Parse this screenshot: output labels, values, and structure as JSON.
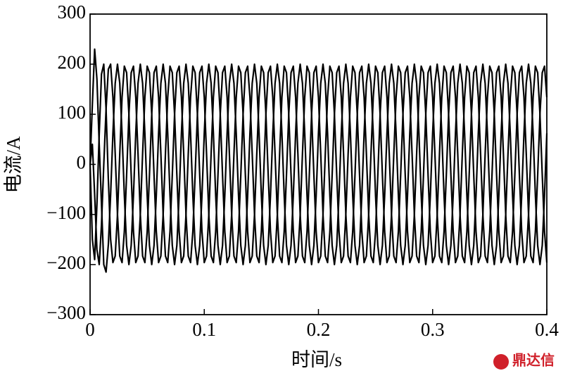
{
  "chart_data": {
    "type": "line",
    "xlabel": "时间/s",
    "ylabel": "电流/A",
    "watermark": "鼎达信",
    "xlim": [
      0,
      0.4
    ],
    "xticks": [
      0,
      0.1,
      0.2,
      0.3,
      0.4
    ],
    "ylim": [
      -300,
      300
    ],
    "yticks": [
      {
        "value": -300,
        "label": "−300"
      },
      {
        "value": -200,
        "label": "−200"
      },
      {
        "value": -100,
        "label": "−100"
      },
      0,
      100,
      200,
      300
    ],
    "x": [
      0,
      0.002,
      0.004,
      0.006,
      0.008,
      0.01,
      0.012,
      0.014,
      0.016,
      0.018,
      0.02,
      0.022,
      0.024,
      0.026,
      0.028,
      0.03,
      0.032,
      0.034,
      0.036,
      0.038,
      0.04,
      0.042,
      0.044,
      0.046,
      0.048,
      0.05,
      0.052,
      0.054,
      0.056,
      0.058,
      0.06,
      0.062,
      0.064,
      0.066,
      0.068,
      0.07,
      0.072,
      0.074,
      0.076,
      0.078,
      0.08,
      0.082,
      0.084,
      0.086,
      0.088,
      0.09,
      0.092,
      0.094,
      0.096,
      0.098,
      0.1,
      0.102,
      0.104,
      0.106,
      0.108,
      0.11,
      0.112,
      0.114,
      0.116,
      0.118,
      0.12,
      0.122,
      0.124,
      0.126,
      0.128,
      0.13,
      0.132,
      0.134,
      0.136,
      0.138,
      0.14,
      0.142,
      0.144,
      0.146,
      0.148,
      0.15,
      0.152,
      0.154,
      0.156,
      0.158,
      0.16,
      0.162,
      0.164,
      0.166,
      0.168,
      0.17,
      0.172,
      0.174,
      0.176,
      0.178,
      0.18,
      0.182,
      0.184,
      0.186,
      0.188,
      0.19,
      0.192,
      0.194,
      0.196,
      0.198,
      0.2,
      0.202,
      0.204,
      0.206,
      0.208,
      0.21,
      0.212,
      0.214,
      0.216,
      0.218,
      0.22,
      0.222,
      0.224,
      0.226,
      0.228,
      0.23,
      0.232,
      0.234,
      0.236,
      0.238,
      0.24,
      0.242,
      0.244,
      0.246,
      0.248,
      0.25,
      0.252,
      0.254,
      0.256,
      0.258,
      0.26,
      0.262,
      0.264,
      0.266,
      0.268,
      0.27,
      0.272,
      0.274,
      0.276,
      0.278,
      0.28,
      0.282,
      0.284,
      0.286,
      0.288,
      0.29,
      0.292,
      0.294,
      0.296,
      0.298,
      0.3,
      0.302,
      0.304,
      0.306,
      0.308,
      0.31,
      0.312,
      0.314,
      0.316,
      0.318,
      0.32,
      0.322,
      0.324,
      0.326,
      0.328,
      0.33,
      0.332,
      0.334,
      0.336,
      0.338,
      0.34,
      0.342,
      0.344,
      0.346,
      0.348,
      0.35,
      0.352,
      0.354,
      0.356,
      0.358,
      0.36,
      0.362,
      0.364,
      0.366,
      0.368,
      0.37,
      0.372,
      0.374,
      0.376,
      0.378,
      0.38,
      0.382,
      0.384,
      0.386,
      0.388,
      0.39,
      0.392,
      0.394,
      0.396,
      0.398,
      0.4
    ],
    "series": [
      {
        "color": "#000000",
        "values": [
          0,
          120,
          230,
          170,
          40,
          -80,
          -200,
          -215,
          -160,
          -60,
          62,
          162,
          200,
          162,
          62,
          -62,
          -162,
          -200,
          -162,
          -62,
          62,
          162,
          200,
          162,
          62,
          -62,
          -162,
          -200,
          -162,
          -62,
          62,
          162,
          200,
          162,
          62,
          -62,
          -162,
          -200,
          -162,
          -62,
          62,
          162,
          200,
          162,
          62,
          -62,
          -162,
          -200,
          -162,
          -62,
          62,
          162,
          200,
          162,
          62,
          -62,
          -162,
          -200,
          -162,
          -62,
          62,
          162,
          200,
          162,
          62,
          -62,
          -162,
          -200,
          -162,
          -62,
          62,
          162,
          200,
          162,
          62,
          -62,
          -162,
          -200,
          -162,
          -62,
          62,
          162,
          200,
          162,
          62,
          -62,
          -162,
          -200,
          -162,
          -62,
          62,
          162,
          200,
          162,
          62,
          -62,
          -162,
          -200,
          -162,
          -62,
          62,
          162,
          200,
          162,
          62,
          -62,
          -162,
          -200,
          -162,
          -62,
          62,
          162,
          200,
          162,
          62,
          -62,
          -162,
          -200,
          -162,
          -62,
          62,
          162,
          200,
          162,
          62,
          -62,
          -162,
          -200,
          -162,
          -62,
          62,
          162,
          200,
          162,
          62,
          -62,
          -162,
          -200,
          -162,
          -62,
          62,
          162,
          200,
          162,
          62,
          -62,
          -162,
          -200,
          -162,
          -62,
          62,
          162,
          200,
          162,
          62,
          -62,
          -162,
          -200,
          -162,
          -62,
          62,
          162,
          200,
          162,
          62,
          -62,
          -162,
          -200,
          -162,
          -62,
          62,
          162,
          200,
          162,
          62,
          -62,
          -162,
          -200,
          -162,
          -62,
          62,
          162,
          200,
          162,
          62,
          -62,
          -162,
          -200,
          -162,
          -62,
          62,
          162,
          200,
          162,
          62,
          -62,
          -162,
          -200,
          -162,
          -62,
          62
        ]
      },
      {
        "color": "#000000",
        "values": [
          0,
          -150,
          -190,
          -80,
          60,
          180,
          200,
          110,
          -30,
          -150,
          -196,
          -183,
          -100,
          21,
          134,
          196,
          183,
          100,
          -21,
          -134,
          -196,
          -183,
          -100,
          21,
          134,
          196,
          183,
          100,
          -21,
          -134,
          -196,
          -183,
          -100,
          21,
          134,
          196,
          183,
          100,
          -21,
          -134,
          -196,
          -183,
          -100,
          21,
          134,
          196,
          183,
          100,
          -21,
          -134,
          -196,
          -183,
          -100,
          21,
          134,
          196,
          183,
          100,
          -21,
          -134,
          -196,
          -183,
          -100,
          21,
          134,
          196,
          183,
          100,
          -21,
          -134,
          -196,
          -183,
          -100,
          21,
          134,
          196,
          183,
          100,
          -21,
          -134,
          -196,
          -183,
          -100,
          21,
          134,
          196,
          183,
          100,
          -21,
          -134,
          -196,
          -183,
          -100,
          21,
          134,
          196,
          183,
          100,
          -21,
          -134,
          -196,
          -183,
          -100,
          21,
          134,
          196,
          183,
          100,
          -21,
          -134,
          -196,
          -183,
          -100,
          21,
          134,
          196,
          183,
          100,
          -21,
          -134,
          -196,
          -183,
          -100,
          21,
          134,
          196,
          183,
          100,
          -21,
          -134,
          -196,
          -183,
          -100,
          21,
          134,
          196,
          183,
          100,
          -21,
          -134,
          -196,
          -183,
          -100,
          21,
          134,
          196,
          183,
          100,
          -21,
          -134,
          -196,
          -183,
          -100,
          21,
          134,
          196,
          183,
          100,
          -21,
          -134,
          -196,
          -183,
          -100,
          21,
          134,
          196,
          183,
          100,
          -21,
          -134,
          -196,
          -183,
          -100,
          21,
          134,
          196,
          183,
          100,
          -21,
          -134,
          -196,
          -183,
          -100,
          21,
          134,
          196,
          183,
          100,
          -21,
          -134,
          -196,
          -183,
          -100,
          21,
          134,
          196,
          183,
          100,
          -21,
          -134,
          -196
        ]
      },
      {
        "color": "#000000",
        "values": [
          0,
          40,
          -60,
          -170,
          -200,
          -120,
          0,
          110,
          190,
          200,
          134,
          21,
          -100,
          -183,
          -196,
          -134,
          -21,
          100,
          183,
          196,
          134,
          21,
          -100,
          -183,
          -196,
          -134,
          -21,
          100,
          183,
          196,
          134,
          21,
          -100,
          -183,
          -196,
          -134,
          -21,
          100,
          183,
          196,
          134,
          21,
          -100,
          -183,
          -196,
          -134,
          -21,
          100,
          183,
          196,
          134,
          21,
          -100,
          -183,
          -196,
          -134,
          -21,
          100,
          183,
          196,
          134,
          21,
          -100,
          -183,
          -196,
          -134,
          -21,
          100,
          183,
          196,
          134,
          21,
          -100,
          -183,
          -196,
          -134,
          -21,
          100,
          183,
          196,
          134,
          21,
          -100,
          -183,
          -196,
          -134,
          -21,
          100,
          183,
          196,
          134,
          21,
          -100,
          -183,
          -196,
          -134,
          -21,
          100,
          183,
          196,
          134,
          21,
          -100,
          -183,
          -196,
          -134,
          -21,
          100,
          183,
          196,
          134,
          21,
          -100,
          -183,
          -196,
          -134,
          -21,
          100,
          183,
          196,
          134,
          21,
          -100,
          -183,
          -196,
          -134,
          -21,
          100,
          183,
          196,
          134,
          21,
          -100,
          -183,
          -196,
          -134,
          -21,
          100,
          183,
          196,
          134,
          21,
          -100,
          -183,
          -196,
          -134,
          -21,
          100,
          183,
          196,
          134,
          21,
          -100,
          -183,
          -196,
          -134,
          -21,
          100,
          183,
          196,
          134,
          21,
          -100,
          -183,
          -196,
          -134,
          -21,
          100,
          183,
          196,
          134,
          21,
          -100,
          -183,
          -196,
          -134,
          -21,
          100,
          183,
          196,
          134,
          21,
          -100,
          -183,
          -196,
          -134,
          -21,
          100,
          183,
          196,
          134,
          21,
          -100,
          -183,
          -196,
          -134,
          -21,
          100,
          183,
          196,
          134
        ]
      }
    ]
  }
}
